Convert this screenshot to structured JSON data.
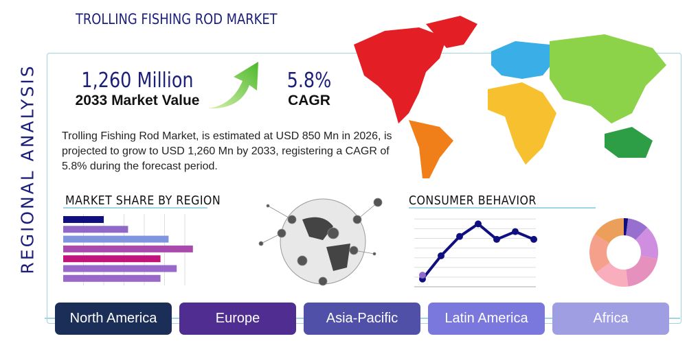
{
  "title": "TROLLING FISHING ROD MARKET",
  "side_title": "REGIONAL ANALYSIS",
  "market_value": {
    "value": "1,260 Million",
    "label": "2033 Market Value"
  },
  "cagr": {
    "value": "5.8%",
    "label": "CAGR"
  },
  "description": "Trolling Fishing Rod Market, is estimated at USD 850 Mn in 2026, is projected to grow to USD 1,260 Mn by 2033, registering a CAGR of 5.8% during the forecast period.",
  "sections": {
    "market_share": "MARKET SHARE BY REGION",
    "consumer": "CONSUMER BEHAVIOR"
  },
  "regions": [
    {
      "label": "North America",
      "color": "#1b2e57"
    },
    {
      "label": "Europe",
      "color": "#4f2d91"
    },
    {
      "label": "Asia-Pacific",
      "color": "#5150a8"
    },
    {
      "label": "Latin America",
      "color": "#7b78dd"
    },
    {
      "label": "Africa",
      "color": "#9f9ee3"
    }
  ],
  "chart_data": [
    {
      "type": "bar",
      "orientation": "horizontal",
      "values": [
        2.0,
        3.2,
        5.2,
        6.4,
        4.8,
        5.6,
        4.8
      ],
      "colors": [
        "#0f0f80",
        "#9068c8",
        "#7f95e0",
        "#a94aad",
        "#c2137a",
        "#9a68c8",
        "#9a68c8"
      ],
      "grid": true
    },
    {
      "type": "line",
      "x": [
        1,
        2,
        3,
        4,
        5,
        6,
        7
      ],
      "values": [
        0.8,
        3.2,
        5.2,
        6.5,
        4.9,
        5.7,
        4.9
      ],
      "extra_point": {
        "x": 1,
        "y": 1.2,
        "color": "#8e6bc8"
      },
      "ylim": [
        0,
        7
      ],
      "color": "#0f0f80",
      "grid": true
    },
    {
      "type": "pie",
      "donut": true,
      "values": [
        0.02,
        0.1,
        0.16,
        0.2,
        0.17,
        0.19,
        0.16
      ],
      "colors": [
        "#0f0f80",
        "#9770cf",
        "#d08ee0",
        "#e690bd",
        "#f8aebd",
        "#f5a08a",
        "#ec9f5a"
      ]
    }
  ],
  "map_colors": {
    "north_america": "#e31e24",
    "south_america": "#f07f1a",
    "europe": "#3aaee6",
    "africa": "#f7c02e",
    "asia": "#8cd34a",
    "australia": "#2e9e46",
    "greenland": "#e31e24"
  }
}
